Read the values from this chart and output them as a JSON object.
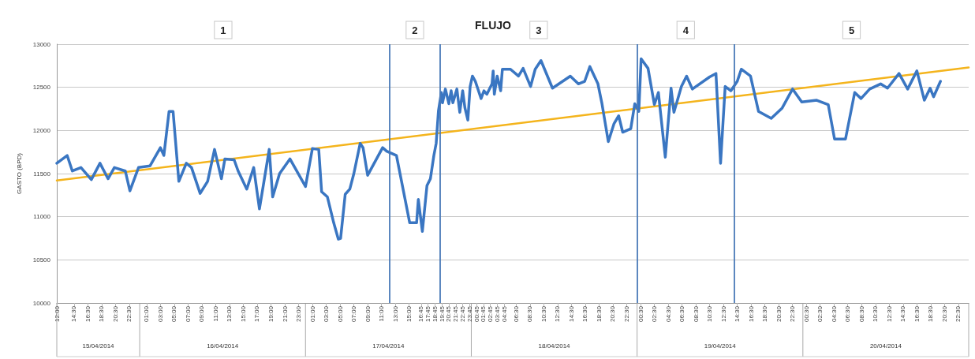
{
  "chart_data": {
    "type": "line",
    "title": "FLUJO",
    "ylabel": "GASTO (BPD)",
    "marker": "none",
    "line_style": "solid",
    "grid": "y",
    "xlim": [
      "2014-04-15T12:00",
      "2014-04-21T00:00"
    ],
    "ylim": [
      10000,
      13000
    ],
    "yticks": [
      10000,
      10500,
      11000,
      11500,
      12000,
      12500,
      13000
    ],
    "xticks": [
      {
        "value": "2014-04-15T12:00",
        "label": "12:00"
      },
      {
        "value": "2014-04-15T14:30",
        "label": "14:30"
      },
      {
        "value": "2014-04-15T16:30",
        "label": "16:30"
      },
      {
        "value": "2014-04-15T18:30",
        "label": "18:30"
      },
      {
        "value": "2014-04-15T20:30",
        "label": "20:30"
      },
      {
        "value": "2014-04-15T22:30",
        "label": "22:30"
      },
      {
        "value": "2014-04-16T01:00",
        "label": "01:00"
      },
      {
        "value": "2014-04-16T03:00",
        "label": "03:00"
      },
      {
        "value": "2014-04-16T05:00",
        "label": "05:00"
      },
      {
        "value": "2014-04-16T07:00",
        "label": "07:00"
      },
      {
        "value": "2014-04-16T09:00",
        "label": "09:00"
      },
      {
        "value": "2014-04-16T11:00",
        "label": "11:00"
      },
      {
        "value": "2014-04-16T13:00",
        "label": "13:00"
      },
      {
        "value": "2014-04-16T15:00",
        "label": "15:00"
      },
      {
        "value": "2014-04-16T17:00",
        "label": "17:00"
      },
      {
        "value": "2014-04-16T19:00",
        "label": "19:00"
      },
      {
        "value": "2014-04-16T21:00",
        "label": "21:00"
      },
      {
        "value": "2014-04-16T23:00",
        "label": "23:00"
      },
      {
        "value": "2014-04-17T01:00",
        "label": "01:00"
      },
      {
        "value": "2014-04-17T03:00",
        "label": "03:00"
      },
      {
        "value": "2014-04-17T05:00",
        "label": "05:00"
      },
      {
        "value": "2014-04-17T07:00",
        "label": "07:00"
      },
      {
        "value": "2014-04-17T09:00",
        "label": "09:00"
      },
      {
        "value": "2014-04-17T11:00",
        "label": "11:00"
      },
      {
        "value": "2014-04-17T13:00",
        "label": "13:00"
      },
      {
        "value": "2014-04-17T15:00",
        "label": "15:00"
      },
      {
        "value": "2014-04-17T16:45",
        "label": "16:45"
      },
      {
        "value": "2014-04-17T17:45",
        "label": "17:45"
      },
      {
        "value": "2014-04-17T18:45",
        "label": "18:45"
      },
      {
        "value": "2014-04-17T19:45",
        "label": "19:45"
      },
      {
        "value": "2014-04-17T20:45",
        "label": "20:45"
      },
      {
        "value": "2014-04-17T21:45",
        "label": "21:45"
      },
      {
        "value": "2014-04-17T22:45",
        "label": "22:45"
      },
      {
        "value": "2014-04-17T23:45",
        "label": "23:45"
      },
      {
        "value": "2014-04-18T00:45",
        "label": "00:45"
      },
      {
        "value": "2014-04-18T01:45",
        "label": "01:45"
      },
      {
        "value": "2014-04-18T02:45",
        "label": "02:45"
      },
      {
        "value": "2014-04-18T03:45",
        "label": "03:45"
      },
      {
        "value": "2014-04-18T04:45",
        "label": "04:45"
      },
      {
        "value": "2014-04-18T06:30",
        "label": "06:30"
      },
      {
        "value": "2014-04-18T08:30",
        "label": "08:30"
      },
      {
        "value": "2014-04-18T10:30",
        "label": "10:30"
      },
      {
        "value": "2014-04-18T12:30",
        "label": "12:30"
      },
      {
        "value": "2014-04-18T14:30",
        "label": "14:30"
      },
      {
        "value": "2014-04-18T16:30",
        "label": "16:30"
      },
      {
        "value": "2014-04-18T18:30",
        "label": "18:30"
      },
      {
        "value": "2014-04-18T20:30",
        "label": "20:30"
      },
      {
        "value": "2014-04-18T22:30",
        "label": "22:30"
      },
      {
        "value": "2014-04-19T00:30",
        "label": "00:30"
      },
      {
        "value": "2014-04-19T02:30",
        "label": "02:30"
      },
      {
        "value": "2014-04-19T04:30",
        "label": "04:30"
      },
      {
        "value": "2014-04-19T06:30",
        "label": "06:30"
      },
      {
        "value": "2014-04-19T08:30",
        "label": "08:30"
      },
      {
        "value": "2014-04-19T10:30",
        "label": "10:30"
      },
      {
        "value": "2014-04-19T12:30",
        "label": "12:30"
      },
      {
        "value": "2014-04-19T14:30",
        "label": "14:30"
      },
      {
        "value": "2014-04-19T16:30",
        "label": "16:30"
      },
      {
        "value": "2014-04-19T18:30",
        "label": "18:30"
      },
      {
        "value": "2014-04-19T20:30",
        "label": "20:30"
      },
      {
        "value": "2014-04-19T22:30",
        "label": "22:30"
      },
      {
        "value": "2014-04-20T00:30",
        "label": "00:30"
      },
      {
        "value": "2014-04-20T02:30",
        "label": "02:30"
      },
      {
        "value": "2014-04-20T04:30",
        "label": "04:30"
      },
      {
        "value": "2014-04-20T06:30",
        "label": "06:30"
      },
      {
        "value": "2014-04-20T08:30",
        "label": "08:30"
      },
      {
        "value": "2014-04-20T10:30",
        "label": "10:30"
      },
      {
        "value": "2014-04-20T12:30",
        "label": "12:30"
      },
      {
        "value": "2014-04-20T14:30",
        "label": "14:30"
      },
      {
        "value": "2014-04-20T16:30",
        "label": "16:30"
      },
      {
        "value": "2014-04-20T18:30",
        "label": "18:30"
      },
      {
        "value": "2014-04-20T20:30",
        "label": "20:30"
      },
      {
        "value": "2014-04-20T22:30",
        "label": "22:30"
      }
    ],
    "series": [
      {
        "color": "#3a76c2",
        "x": [
          "2014-04-15T12:00",
          "2014-04-15T13:30",
          "2014-04-15T14:15",
          "2014-04-15T15:30",
          "2014-04-15T17:00",
          "2014-04-15T18:15",
          "2014-04-15T19:25",
          "2014-04-15T20:20",
          "2014-04-15T21:55",
          "2014-04-15T22:35",
          "2014-04-15T23:50",
          "2014-04-16T01:30",
          "2014-04-16T03:00",
          "2014-04-16T03:30",
          "2014-04-16T04:15",
          "2014-04-16T04:50",
          "2014-04-16T05:40",
          "2014-04-16T06:45",
          "2014-04-16T07:30",
          "2014-04-16T08:45",
          "2014-04-16T09:50",
          "2014-04-16T10:50",
          "2014-04-16T11:50",
          "2014-04-16T12:20",
          "2014-04-16T13:40",
          "2014-04-16T14:15",
          "2014-04-16T15:30",
          "2014-04-16T16:30",
          "2014-04-16T17:20",
          "2014-04-16T18:45",
          "2014-04-16T19:15",
          "2014-04-16T20:15",
          "2014-04-16T21:45",
          "2014-04-17T00:00",
          "2014-04-17T01:00",
          "2014-04-17T01:55",
          "2014-04-17T02:20",
          "2014-04-17T03:10",
          "2014-04-17T04:05",
          "2014-04-17T04:45",
          "2014-04-17T05:05",
          "2014-04-17T05:45",
          "2014-04-17T06:25",
          "2014-04-17T07:00",
          "2014-04-17T07:55",
          "2014-04-17T08:20",
          "2014-04-17T09:00",
          "2014-04-17T11:10",
          "2014-04-17T11:45",
          "2014-04-17T13:10",
          "2014-04-17T15:05",
          "2014-04-17T16:05",
          "2014-04-17T16:20",
          "2014-04-17T16:55",
          "2014-04-17T17:35",
          "2014-04-17T18:05",
          "2014-04-17T18:35",
          "2014-04-17T18:55",
          "2014-04-17T19:15",
          "2014-04-17T19:40",
          "2014-04-17T19:50",
          "2014-04-17T20:15",
          "2014-04-17T20:45",
          "2014-04-17T21:05",
          "2014-04-17T21:20",
          "2014-04-17T21:55",
          "2014-04-17T22:20",
          "2014-04-17T22:45",
          "2014-04-17T23:05",
          "2014-04-17T23:30",
          "2014-04-17T23:50",
          "2014-04-18T00:10",
          "2014-04-18T00:35",
          "2014-04-18T01:25",
          "2014-04-18T01:50",
          "2014-04-18T02:15",
          "2014-04-18T03:00",
          "2014-04-18T03:10",
          "2014-04-18T03:20",
          "2014-04-18T03:45",
          "2014-04-18T04:15",
          "2014-04-18T04:30",
          "2014-04-18T05:40",
          "2014-04-18T06:50",
          "2014-04-18T07:30",
          "2014-04-18T08:35",
          "2014-04-18T09:15",
          "2014-04-18T10:05",
          "2014-04-18T11:45",
          "2014-04-18T14:20",
          "2014-04-18T15:30",
          "2014-04-18T16:25",
          "2014-04-18T17:10",
          "2014-04-18T18:20",
          "2014-04-18T18:55",
          "2014-04-18T19:50",
          "2014-04-18T20:40",
          "2014-04-18T21:20",
          "2014-04-18T21:55",
          "2014-04-18T23:05",
          "2014-04-18T23:40",
          "2014-04-19T00:15",
          "2014-04-19T00:35",
          "2014-04-19T01:35",
          "2014-04-19T02:30",
          "2014-04-19T03:05",
          "2014-04-19T04:05",
          "2014-04-19T04:55",
          "2014-04-19T05:20",
          "2014-04-19T06:25",
          "2014-04-19T07:10",
          "2014-04-19T08:00",
          "2014-04-19T10:30",
          "2014-04-19T11:25",
          "2014-04-19T12:05",
          "2014-04-19T12:45",
          "2014-04-19T13:35",
          "2014-04-19T14:30",
          "2014-04-19T15:05",
          "2014-04-19T16:25",
          "2014-04-19T17:35",
          "2014-04-19T19:25",
          "2014-04-19T21:00",
          "2014-04-19T22:30",
          "2014-04-19T23:50",
          "2014-04-20T02:00",
          "2014-04-20T03:40",
          "2014-04-20T04:35",
          "2014-04-20T06:10",
          "2014-04-20T07:30",
          "2014-04-20T08:25",
          "2014-04-20T09:40",
          "2014-04-20T11:15",
          "2014-04-20T12:15",
          "2014-04-20T13:55",
          "2014-04-20T15:10",
          "2014-04-20T16:30",
          "2014-04-20T17:35",
          "2014-04-20T18:25",
          "2014-04-20T18:55",
          "2014-04-20T19:55"
        ],
        "values": [
          11620,
          11710,
          11530,
          11570,
          11430,
          11620,
          11440,
          11570,
          11530,
          11300,
          11570,
          11590,
          11800,
          11710,
          12220,
          12220,
          11410,
          11620,
          11570,
          11270,
          11410,
          11780,
          11440,
          11670,
          11660,
          11530,
          11320,
          11570,
          11090,
          11780,
          11230,
          11500,
          11670,
          11350,
          11790,
          11780,
          11290,
          11230,
          10930,
          10740,
          10750,
          11260,
          11320,
          11500,
          11850,
          11800,
          11480,
          11800,
          11760,
          11710,
          10930,
          10930,
          11200,
          10830,
          11360,
          11440,
          11710,
          11850,
          12230,
          12440,
          12320,
          12480,
          12310,
          12460,
          12320,
          12480,
          12210,
          12460,
          12260,
          12120,
          12510,
          12630,
          12570,
          12370,
          12460,
          12420,
          12540,
          12690,
          12420,
          12630,
          12460,
          12710,
          12710,
          12630,
          12720,
          12510,
          12710,
          12810,
          12490,
          12630,
          12540,
          12570,
          12740,
          12540,
          12310,
          11870,
          12080,
          12170,
          11980,
          12020,
          12310,
          12220,
          12830,
          12720,
          12300,
          12440,
          11690,
          12490,
          12210,
          12510,
          12630,
          12480,
          12620,
          12660,
          11620,
          12510,
          12460,
          12570,
          12710,
          12630,
          12220,
          12140,
          12260,
          12480,
          12330,
          12350,
          12300,
          11900,
          11900,
          12440,
          12370,
          12480,
          12540,
          12490,
          12660,
          12480,
          12690,
          12350,
          12490,
          12390,
          12570
        ]
      },
      {
        "type": "line",
        "color": "#f4b41c",
        "x": [
          "2014-04-15T12:00",
          "2014-04-21T00:00"
        ],
        "values": [
          11420,
          12730
        ]
      }
    ],
    "ref_lines": [
      {
        "axis": "x",
        "value": "2014-04-17T12:10",
        "color": "#4a7ab8"
      },
      {
        "axis": "x",
        "value": "2014-04-17T19:30",
        "color": "#4a7ab8"
      },
      {
        "axis": "x",
        "value": "2014-04-19T00:00",
        "color": "#4a7ab8"
      },
      {
        "axis": "x",
        "value": "2014-04-19T14:05",
        "color": "#4a7ab8"
      }
    ],
    "annotations": [
      "1",
      "2",
      "3",
      "4",
      "5",
      "15/04/2014",
      "16/04/2014",
      "17/04/2014",
      "18/04/2014",
      "19/04/2014",
      "20/04/2014"
    ]
  }
}
